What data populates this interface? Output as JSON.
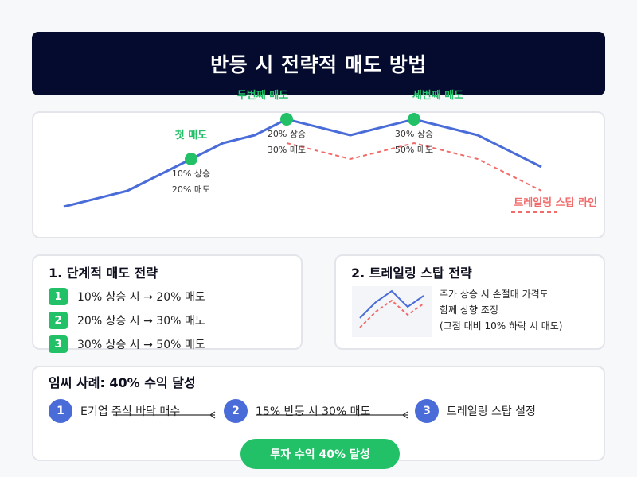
{
  "title": "반등 시 전략적 매도 방법",
  "chart": {
    "sell_labels": {
      "first": "첫 매도",
      "second": "두번째 매도",
      "third": "세번째 매도"
    },
    "annotations": [
      {
        "rise": "10% 상승",
        "sell": "20% 매도"
      },
      {
        "rise": "20% 상승",
        "sell": "30% 매도"
      },
      {
        "rise": "30% 상승",
        "sell": "50% 매도"
      }
    ],
    "trailing_label": "트레일링 스탑 라인",
    "colors": {
      "price": "#4a6cd8",
      "trailing": "#f26b6b",
      "sell_marker": "#22c167"
    }
  },
  "stepwise": {
    "title": "1. 단계적 매도 전략",
    "steps": [
      {
        "num": "1",
        "text": "10% 상승 시 → 20% 매도"
      },
      {
        "num": "2",
        "text": "20% 상승 시 → 30% 매도"
      },
      {
        "num": "3",
        "text": "30% 상승 시 → 50% 매도"
      }
    ]
  },
  "trailing": {
    "title": "2. 트레일링 스탑 전략",
    "lines": [
      "주가 상승 시 손절매 가격도",
      "함께 상향 조정",
      "(고점 대비 10% 하락 시 매도)"
    ]
  },
  "case": {
    "title": "임씨 사례: 40% 수익 달성",
    "steps": [
      {
        "num": "1",
        "text": "E기업 주식 바닥 매수"
      },
      {
        "num": "2",
        "text": "15% 반등 시 30% 매도"
      },
      {
        "num": "3",
        "text": "트레일링 스탑 설정"
      }
    ],
    "result": "투자 수익 40% 달성"
  }
}
